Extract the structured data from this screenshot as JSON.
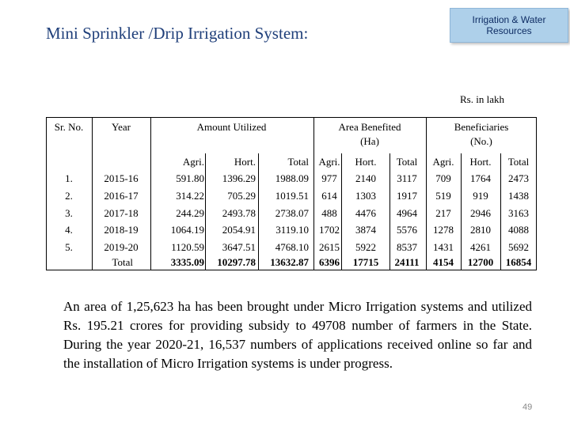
{
  "title": "Mini Sprinkler /Drip Irrigation System:",
  "badge": {
    "line1": "Irrigation & Water",
    "line2": "Resources"
  },
  "unit_note": "Rs. in lakh",
  "table": {
    "headers": {
      "sr": "Sr. No.",
      "year": "Year",
      "amount": "Amount Utilized",
      "area_line1": "Area Benefited",
      "area_line2": "(Ha)",
      "ben_line1": "Beneficiaries",
      "ben_line2": "(No.)"
    },
    "subheaders": [
      "Agri.",
      "Hort.",
      "Total",
      "Agri.",
      "Hort.",
      "Total",
      "Agri.",
      "Hort.",
      "Total"
    ],
    "rows": [
      {
        "sr": "1.",
        "year": "2015-16",
        "cells": [
          "591.80",
          "1396.29",
          "1988.09",
          "977",
          "2140",
          "3117",
          "709",
          "1764",
          "2473"
        ]
      },
      {
        "sr": "2.",
        "year": "2016-17",
        "cells": [
          "314.22",
          "705.29",
          "1019.51",
          "614",
          "1303",
          "1917",
          "519",
          "919",
          "1438"
        ]
      },
      {
        "sr": "3.",
        "year": "2017-18",
        "cells": [
          "244.29",
          "2493.78",
          "2738.07",
          "488",
          "4476",
          "4964",
          "217",
          "2946",
          "3163"
        ]
      },
      {
        "sr": "4.",
        "year": "2018-19",
        "cells": [
          "1064.19",
          "2054.91",
          "3119.10",
          "1702",
          "3874",
          "5576",
          "1278",
          "2810",
          "4088"
        ]
      },
      {
        "sr": "5.",
        "year": "2019-20",
        "cells": [
          "1120.59",
          "3647.51",
          "4768.10",
          "2615",
          "5922",
          "8537",
          "1431",
          "4261",
          "5692"
        ]
      }
    ],
    "total": {
      "label": "Total",
      "cells": [
        "3335.09",
        "10297.78",
        "13632.87",
        "6396",
        "17715",
        "24111",
        "4154",
        "12700",
        "16854"
      ]
    }
  },
  "paragraph": "An area of 1,25,623 ha has been brought under Micro Irrigation systems and utilized Rs. 195.21 crores for providing subsidy to 49708 number of farmers in the State. During the year 2020-21, 16,537 numbers of applications received online so far and the installation of Micro Irrigation systems is under progress.",
  "page_number": "49"
}
